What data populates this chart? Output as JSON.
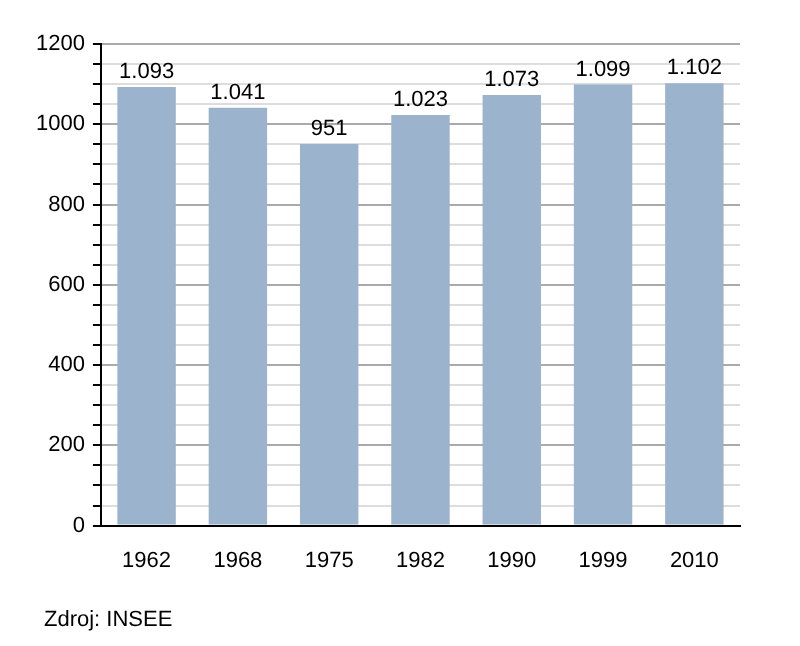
{
  "chart_data": {
    "type": "bar",
    "categories": [
      "1962",
      "1968",
      "1975",
      "1982",
      "1990",
      "1999",
      "2010"
    ],
    "values": [
      1093,
      1041,
      951,
      1023,
      1073,
      1099,
      1102
    ],
    "value_labels": [
      "1.093",
      "1.041",
      "951",
      "1.023",
      "1.073",
      "1.099",
      "1.102"
    ],
    "color": "#9bb3cc",
    "ylim": [
      0,
      1200
    ],
    "yticks": [
      0,
      {
        "value": 50,
        "label": null
      },
      {
        "value": 100,
        "label": null
      },
      {
        "value": 150,
        "label": null
      },
      200,
      {
        "value": 250,
        "label": null
      },
      {
        "value": 300,
        "label": null
      },
      {
        "value": 350,
        "label": null
      },
      400,
      {
        "value": 450,
        "label": null
      },
      {
        "value": 500,
        "label": null
      },
      {
        "value": 550,
        "label": null
      },
      600,
      {
        "value": 650,
        "label": null
      },
      {
        "value": 700,
        "label": null
      },
      {
        "value": 750,
        "label": null
      },
      800,
      {
        "value": 850,
        "label": null
      },
      {
        "value": 900,
        "label": null
      },
      {
        "value": 950,
        "label": null
      },
      1000,
      {
        "value": 1050,
        "label": null
      },
      {
        "value": 1100,
        "label": null
      },
      {
        "value": 1150,
        "label": null
      },
      1200
    ],
    "grid": "y",
    "annotations": [
      "Zdroj: INSEE"
    ]
  }
}
